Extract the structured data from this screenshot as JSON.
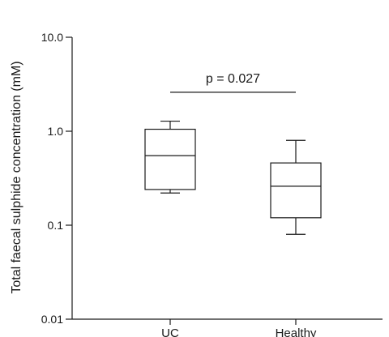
{
  "chart_data": {
    "type": "boxplot",
    "y_scale": "log",
    "ylim": [
      0.01,
      10.0
    ],
    "ylabel": "Total faecal sulphide concentration (mM)",
    "xlabel": "",
    "y_ticks": [
      {
        "value": 0.01,
        "label": "0.01"
      },
      {
        "value": 0.1,
        "label": "0.1"
      },
      {
        "value": 1.0,
        "label": "1.0"
      },
      {
        "value": 10.0,
        "label": "10.0"
      }
    ],
    "categories": [
      "UC",
      "Healthy"
    ],
    "boxes": [
      {
        "category": "UC",
        "whisker_low": 0.22,
        "q1": 0.24,
        "median": 0.55,
        "q3": 1.05,
        "whisker_high": 1.28
      },
      {
        "category": "Healthy",
        "whisker_low": 0.08,
        "q1": 0.12,
        "median": 0.26,
        "q3": 0.46,
        "whisker_high": 0.8
      }
    ],
    "annotation": {
      "text": "p = 0.027",
      "between": [
        "UC",
        "Healthy"
      ],
      "y": 2.6
    },
    "grid": false,
    "legend": "none"
  },
  "colors": {
    "stroke": "#1a1a1a",
    "background": "#ffffff"
  }
}
